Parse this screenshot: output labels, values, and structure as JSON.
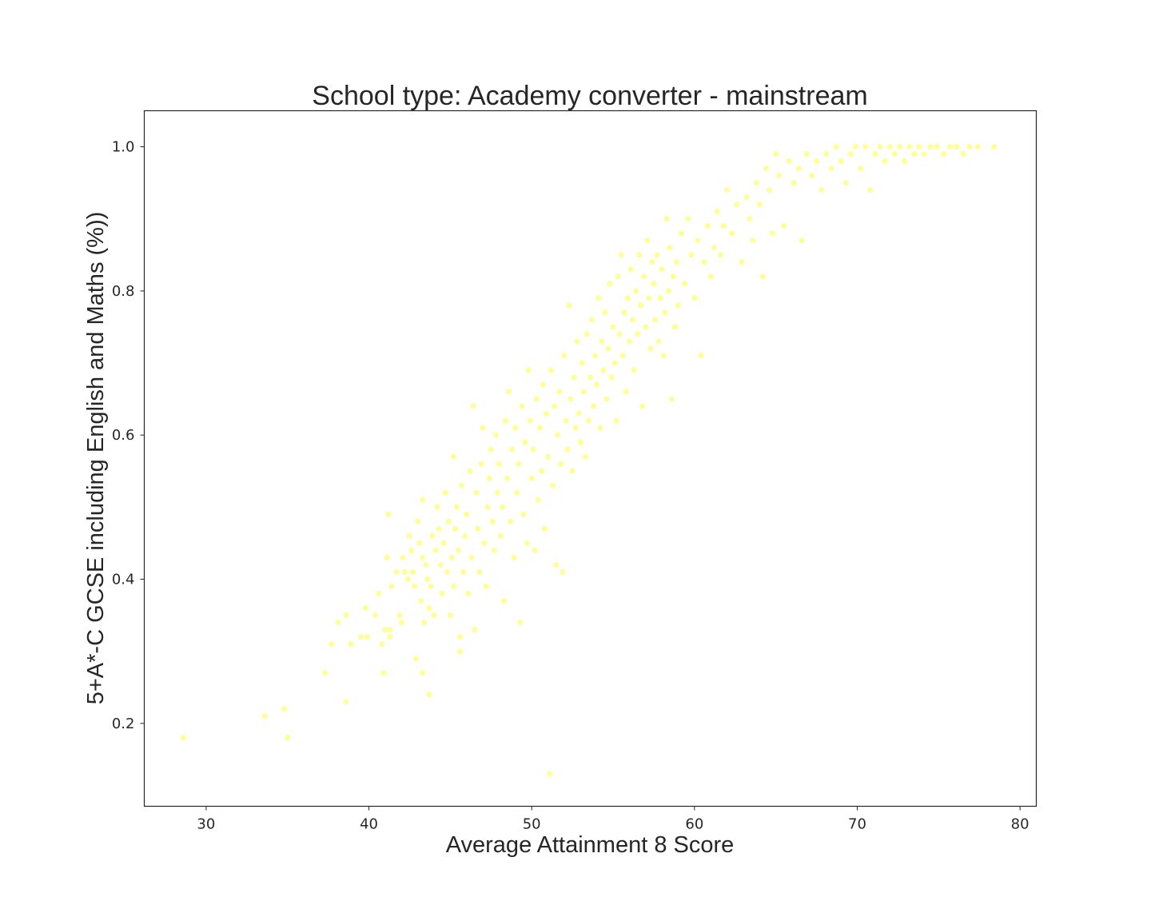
{
  "chart_data": {
    "type": "scatter",
    "title": "School type: Academy converter - mainstream",
    "xlabel": "Average Attainment 8 Score",
    "ylabel": "5+A*-C GCSE including English and Maths (%))",
    "xlim": [
      26.2,
      81.0
    ],
    "ylim": [
      0.085,
      1.05
    ],
    "xticks": [
      30,
      40,
      50,
      60,
      70,
      80
    ],
    "xtick_labels": [
      "30",
      "40",
      "50",
      "60",
      "70",
      "80"
    ],
    "yticks": [
      0.2,
      0.4,
      0.6,
      0.8,
      1.0
    ],
    "ytick_labels": [
      "0.2",
      "0.4",
      "0.6",
      "0.8",
      "1.0"
    ],
    "grid": false,
    "marker_color": "#ffff99",
    "points": [
      [
        28.6,
        0.18
      ],
      [
        33.6,
        0.21
      ],
      [
        34.8,
        0.22
      ],
      [
        35.0,
        0.18
      ],
      [
        37.3,
        0.27
      ],
      [
        37.7,
        0.31
      ],
      [
        38.1,
        0.34
      ],
      [
        38.6,
        0.35
      ],
      [
        38.6,
        0.23
      ],
      [
        38.9,
        0.31
      ],
      [
        39.5,
        0.32
      ],
      [
        39.8,
        0.36
      ],
      [
        39.9,
        0.32
      ],
      [
        40.4,
        0.35
      ],
      [
        40.6,
        0.38
      ],
      [
        40.8,
        0.31
      ],
      [
        40.9,
        0.27
      ],
      [
        41.0,
        0.33
      ],
      [
        41.1,
        0.43
      ],
      [
        41.2,
        0.49
      ],
      [
        41.3,
        0.33
      ],
      [
        41.3,
        0.32
      ],
      [
        41.4,
        0.39
      ],
      [
        41.7,
        0.41
      ],
      [
        41.9,
        0.35
      ],
      [
        42.0,
        0.34
      ],
      [
        42.1,
        0.43
      ],
      [
        42.2,
        0.41
      ],
      [
        42.4,
        0.4
      ],
      [
        42.5,
        0.46
      ],
      [
        42.6,
        0.44
      ],
      [
        42.7,
        0.41
      ],
      [
        42.8,
        0.39
      ],
      [
        42.9,
        0.29
      ],
      [
        43.0,
        0.48
      ],
      [
        43.1,
        0.45
      ],
      [
        43.2,
        0.37
      ],
      [
        43.3,
        0.51
      ],
      [
        43.3,
        0.43
      ],
      [
        43.3,
        0.27
      ],
      [
        43.4,
        0.34
      ],
      [
        43.5,
        0.42
      ],
      [
        43.6,
        0.4
      ],
      [
        43.7,
        0.36
      ],
      [
        43.7,
        0.24
      ],
      [
        43.8,
        0.39
      ],
      [
        43.9,
        0.46
      ],
      [
        44.0,
        0.35
      ],
      [
        44.1,
        0.44
      ],
      [
        44.2,
        0.5
      ],
      [
        44.3,
        0.47
      ],
      [
        44.4,
        0.42
      ],
      [
        44.5,
        0.38
      ],
      [
        44.6,
        0.45
      ],
      [
        44.7,
        0.52
      ],
      [
        44.8,
        0.41
      ],
      [
        44.9,
        0.48
      ],
      [
        45.0,
        0.35
      ],
      [
        45.1,
        0.43
      ],
      [
        45.2,
        0.57
      ],
      [
        45.2,
        0.39
      ],
      [
        45.3,
        0.47
      ],
      [
        45.4,
        0.5
      ],
      [
        45.5,
        0.44
      ],
      [
        45.6,
        0.32
      ],
      [
        45.6,
        0.3
      ],
      [
        45.7,
        0.53
      ],
      [
        45.8,
        0.41
      ],
      [
        45.9,
        0.46
      ],
      [
        46.0,
        0.49
      ],
      [
        46.1,
        0.38
      ],
      [
        46.2,
        0.55
      ],
      [
        46.3,
        0.43
      ],
      [
        46.4,
        0.64
      ],
      [
        46.5,
        0.33
      ],
      [
        46.6,
        0.52
      ],
      [
        46.7,
        0.47
      ],
      [
        46.8,
        0.41
      ],
      [
        46.9,
        0.56
      ],
      [
        47.0,
        0.61
      ],
      [
        47.1,
        0.45
      ],
      [
        47.2,
        0.39
      ],
      [
        47.3,
        0.5
      ],
      [
        47.4,
        0.54
      ],
      [
        47.5,
        0.58
      ],
      [
        47.6,
        0.48
      ],
      [
        47.7,
        0.44
      ],
      [
        47.8,
        0.6
      ],
      [
        47.9,
        0.52
      ],
      [
        48.0,
        0.56
      ],
      [
        48.1,
        0.46
      ],
      [
        48.2,
        0.5
      ],
      [
        48.3,
        0.37
      ],
      [
        48.4,
        0.62
      ],
      [
        48.5,
        0.54
      ],
      [
        48.6,
        0.66
      ],
      [
        48.7,
        0.48
      ],
      [
        48.8,
        0.58
      ],
      [
        48.9,
        0.43
      ],
      [
        49.0,
        0.61
      ],
      [
        49.1,
        0.52
      ],
      [
        49.2,
        0.56
      ],
      [
        49.3,
        0.34
      ],
      [
        49.4,
        0.64
      ],
      [
        49.5,
        0.49
      ],
      [
        49.6,
        0.59
      ],
      [
        49.7,
        0.45
      ],
      [
        49.8,
        0.69
      ],
      [
        49.9,
        0.62
      ],
      [
        50.0,
        0.54
      ],
      [
        50.1,
        0.58
      ],
      [
        50.2,
        0.44
      ],
      [
        50.3,
        0.65
      ],
      [
        50.4,
        0.51
      ],
      [
        50.5,
        0.61
      ],
      [
        50.6,
        0.55
      ],
      [
        50.7,
        0.67
      ],
      [
        50.8,
        0.47
      ],
      [
        50.9,
        0.63
      ],
      [
        51.0,
        0.57
      ],
      [
        51.1,
        0.13
      ],
      [
        51.2,
        0.69
      ],
      [
        51.3,
        0.53
      ],
      [
        51.4,
        0.64
      ],
      [
        51.5,
        0.42
      ],
      [
        51.6,
        0.6
      ],
      [
        51.7,
        0.66
      ],
      [
        51.8,
        0.56
      ],
      [
        51.9,
        0.41
      ],
      [
        52.0,
        0.71
      ],
      [
        52.1,
        0.62
      ],
      [
        52.2,
        0.58
      ],
      [
        52.3,
        0.78
      ],
      [
        52.4,
        0.65
      ],
      [
        52.5,
        0.55
      ],
      [
        52.6,
        0.68
      ],
      [
        52.7,
        0.61
      ],
      [
        52.8,
        0.73
      ],
      [
        52.9,
        0.63
      ],
      [
        53.0,
        0.59
      ],
      [
        53.1,
        0.7
      ],
      [
        53.2,
        0.66
      ],
      [
        53.3,
        0.57
      ],
      [
        53.4,
        0.74
      ],
      [
        53.5,
        0.62
      ],
      [
        53.6,
        0.68
      ],
      [
        53.7,
        0.76
      ],
      [
        53.8,
        0.64
      ],
      [
        53.9,
        0.71
      ],
      [
        54.0,
        0.67
      ],
      [
        54.1,
        0.79
      ],
      [
        54.2,
        0.61
      ],
      [
        54.3,
        0.73
      ],
      [
        54.4,
        0.69
      ],
      [
        54.5,
        0.77
      ],
      [
        54.6,
        0.65
      ],
      [
        54.7,
        0.72
      ],
      [
        54.8,
        0.81
      ],
      [
        54.9,
        0.68
      ],
      [
        55.0,
        0.75
      ],
      [
        55.1,
        0.7
      ],
      [
        55.2,
        0.62
      ],
      [
        55.3,
        0.82
      ],
      [
        55.4,
        0.74
      ],
      [
        55.5,
        0.85
      ],
      [
        55.6,
        0.71
      ],
      [
        55.7,
        0.77
      ],
      [
        55.8,
        0.66
      ],
      [
        55.9,
        0.79
      ],
      [
        56.0,
        0.73
      ],
      [
        56.1,
        0.83
      ],
      [
        56.2,
        0.76
      ],
      [
        56.3,
        0.69
      ],
      [
        56.4,
        0.8
      ],
      [
        56.5,
        0.74
      ],
      [
        56.6,
        0.85
      ],
      [
        56.7,
        0.78
      ],
      [
        56.8,
        0.64
      ],
      [
        56.9,
        0.82
      ],
      [
        57.0,
        0.75
      ],
      [
        57.1,
        0.87
      ],
      [
        57.2,
        0.79
      ],
      [
        57.3,
        0.72
      ],
      [
        57.4,
        0.84
      ],
      [
        57.5,
        0.81
      ],
      [
        57.6,
        0.76
      ],
      [
        57.7,
        0.85
      ],
      [
        57.8,
        0.73
      ],
      [
        57.9,
        0.79
      ],
      [
        58.0,
        0.83
      ],
      [
        58.1,
        0.71
      ],
      [
        58.2,
        0.77
      ],
      [
        58.3,
        0.9
      ],
      [
        58.4,
        0.8
      ],
      [
        58.5,
        0.86
      ],
      [
        58.6,
        0.65
      ],
      [
        58.7,
        0.82
      ],
      [
        58.8,
        0.75
      ],
      [
        58.9,
        0.84
      ],
      [
        59.0,
        0.78
      ],
      [
        59.2,
        0.88
      ],
      [
        59.4,
        0.81
      ],
      [
        59.6,
        0.9
      ],
      [
        59.8,
        0.85
      ],
      [
        60.0,
        0.79
      ],
      [
        60.2,
        0.87
      ],
      [
        60.4,
        0.71
      ],
      [
        60.6,
        0.84
      ],
      [
        60.8,
        0.89
      ],
      [
        61.0,
        0.82
      ],
      [
        61.2,
        0.86
      ],
      [
        61.4,
        0.91
      ],
      [
        61.6,
        0.85
      ],
      [
        61.8,
        0.89
      ],
      [
        62.0,
        0.94
      ],
      [
        62.3,
        0.88
      ],
      [
        62.6,
        0.92
      ],
      [
        62.9,
        0.84
      ],
      [
        63.2,
        0.93
      ],
      [
        63.4,
        0.9
      ],
      [
        63.6,
        0.87
      ],
      [
        63.8,
        0.95
      ],
      [
        64.0,
        0.92
      ],
      [
        64.2,
        0.82
      ],
      [
        64.4,
        0.97
      ],
      [
        64.6,
        0.94
      ],
      [
        64.8,
        0.88
      ],
      [
        65.0,
        0.99
      ],
      [
        65.2,
        0.96
      ],
      [
        65.5,
        0.89
      ],
      [
        65.8,
        0.98
      ],
      [
        66.1,
        0.95
      ],
      [
        66.4,
        0.97
      ],
      [
        66.6,
        0.87
      ],
      [
        66.9,
        0.99
      ],
      [
        67.2,
        0.96
      ],
      [
        67.5,
        0.98
      ],
      [
        67.8,
        0.94
      ],
      [
        68.1,
        0.99
      ],
      [
        68.4,
        0.97
      ],
      [
        68.7,
        1.0
      ],
      [
        69.0,
        0.98
      ],
      [
        69.3,
        0.95
      ],
      [
        69.6,
        0.99
      ],
      [
        69.9,
        1.0
      ],
      [
        70.2,
        0.97
      ],
      [
        70.5,
        1.0
      ],
      [
        70.8,
        0.94
      ],
      [
        71.1,
        0.99
      ],
      [
        71.4,
        1.0
      ],
      [
        71.7,
        0.98
      ],
      [
        72.0,
        1.0
      ],
      [
        72.3,
        0.99
      ],
      [
        72.6,
        1.0
      ],
      [
        72.9,
        0.98
      ],
      [
        73.2,
        1.0
      ],
      [
        73.5,
        0.99
      ],
      [
        73.8,
        1.0
      ],
      [
        74.1,
        0.99
      ],
      [
        74.5,
        1.0
      ],
      [
        74.9,
        1.0
      ],
      [
        75.3,
        0.99
      ],
      [
        75.7,
        1.0
      ],
      [
        76.1,
        1.0
      ],
      [
        76.5,
        0.99
      ],
      [
        76.9,
        1.0
      ],
      [
        77.4,
        1.0
      ],
      [
        78.4,
        1.0
      ]
    ]
  }
}
